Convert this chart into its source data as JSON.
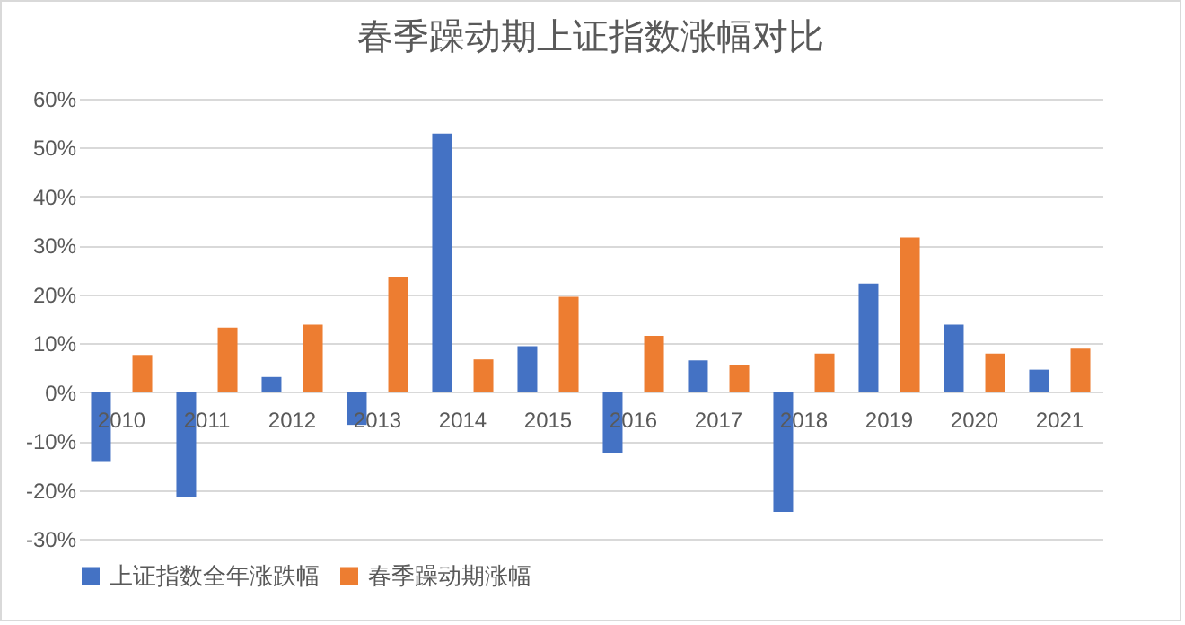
{
  "chart_data": {
    "type": "bar",
    "title": "春季躁动期上证指数涨幅对比",
    "categories": [
      "2010",
      "2011",
      "2012",
      "2013",
      "2014",
      "2015",
      "2016",
      "2017",
      "2018",
      "2019",
      "2020",
      "2021"
    ],
    "series": [
      {
        "name": "上证指数全年涨跌幅",
        "color": "#4472c4",
        "values": [
          -14.1,
          -21.5,
          3.1,
          -6.7,
          52.9,
          9.4,
          -12.5,
          6.5,
          -24.5,
          22.2,
          13.8,
          4.6
        ]
      },
      {
        "name": "春季躁动期涨幅",
        "color": "#ed7d31",
        "values": [
          7.6,
          13.2,
          13.8,
          23.6,
          6.7,
          19.5,
          11.5,
          5.5,
          7.9,
          31.6,
          7.9,
          8.9
        ]
      }
    ],
    "ylim": [
      -30,
      60
    ],
    "yticks": [
      {
        "value": -30,
        "label": "-30%"
      },
      {
        "value": -20,
        "label": "-20%"
      },
      {
        "value": -10,
        "label": "-10%"
      },
      {
        "value": 0,
        "label": "0%"
      },
      {
        "value": 10,
        "label": "10%"
      },
      {
        "value": 20,
        "label": "20%"
      },
      {
        "value": 30,
        "label": "30%"
      },
      {
        "value": 40,
        "label": "40%"
      },
      {
        "value": 50,
        "label": "50%"
      },
      {
        "value": 60,
        "label": "60%"
      }
    ],
    "grid": "y",
    "legend": "bottom"
  }
}
